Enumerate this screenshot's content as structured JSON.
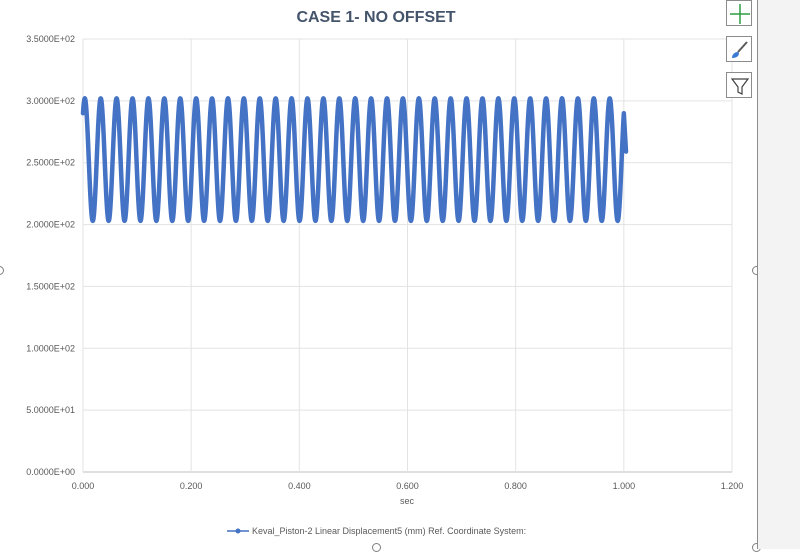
{
  "chart_data": {
    "type": "line",
    "title": "CASE 1- NO OFFSET",
    "xlabel": "sec",
    "ylabel": "",
    "xlim": [
      0.0,
      1.2
    ],
    "ylim": [
      0.0,
      350.0
    ],
    "x_ticks": [
      "0.000",
      "0.200",
      "0.400",
      "0.600",
      "0.800",
      "1.000",
      "1.200"
    ],
    "y_ticks": [
      "0.0000E+00",
      "5.0000E+01",
      "1.0000E+02",
      "1.5000E+02",
      "2.0000E+02",
      "2.5000E+02",
      "3.0000E+02",
      "3.5000E+02"
    ],
    "grid": true,
    "legend_position": "bottom",
    "series": [
      {
        "name": "Keval_Piston-2 Linear Displacement5 (mm) Ref. Coordinate System:",
        "color": "#4472c4",
        "x_start": 0.0,
        "x_end": 1.0,
        "y_min": 203,
        "y_max": 302,
        "y_start": 290,
        "y_end": 259,
        "cycles": 34
      }
    ]
  },
  "toolbar": {
    "icons": [
      "plus-icon",
      "paintbrush-icon",
      "filter-icon"
    ]
  }
}
